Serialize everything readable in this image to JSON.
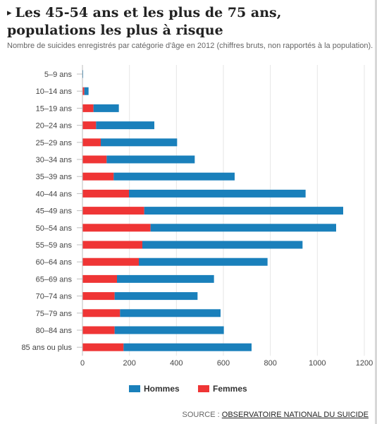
{
  "header": {
    "arrow": "▸",
    "title": "Les 45-54 ans et les plus de 75 ans, populations les plus à risque",
    "subtitle": "Nombre de suicides enregistrés par catégorie d'âge en 2012 (chiffres bruts, non rapportés à la population)."
  },
  "source": {
    "prefix": "SOURCE : ",
    "link": "OBSERVATOIRE NATIONAL DU SUICIDE"
  },
  "colors": {
    "hommes": "#1a80bb",
    "femmes": "#ef3535",
    "grid": "#e6e6e6",
    "axis": "#bdbdbd"
  },
  "chart_data": {
    "type": "bar",
    "orientation": "horizontal",
    "stacked": true,
    "title": "Les 45-54 ans et les plus de 75 ans, populations les plus à risque",
    "categories": [
      "5–9 ans",
      "10–14 ans",
      "15–19 ans",
      "20–24 ans",
      "25–29 ans",
      "30–34 ans",
      "35–39 ans",
      "40–44 ans",
      "45–49 ans",
      "50–54 ans",
      "55–59 ans",
      "60–64 ans",
      "65–69 ans",
      "70–74 ans",
      "75–79 ans",
      "80–84 ans",
      "85 ans ou plus"
    ],
    "series": [
      {
        "name": "Femmes",
        "values": [
          0,
          8,
          47,
          58,
          78,
          103,
          133,
          198,
          263,
          290,
          255,
          240,
          147,
          137,
          160,
          137,
          175
        ]
      },
      {
        "name": "Hommes",
        "values": [
          1,
          18,
          108,
          248,
          325,
          375,
          515,
          752,
          847,
          790,
          682,
          548,
          413,
          353,
          428,
          465,
          545
        ]
      }
    ],
    "xlim": [
      0,
      1200
    ],
    "xticks": [
      0,
      200,
      400,
      600,
      800,
      1000,
      1200
    ],
    "xlabel": "",
    "ylabel": "",
    "grid": true,
    "legend": {
      "position": "bottom",
      "items": [
        "Hommes",
        "Femmes"
      ]
    }
  }
}
